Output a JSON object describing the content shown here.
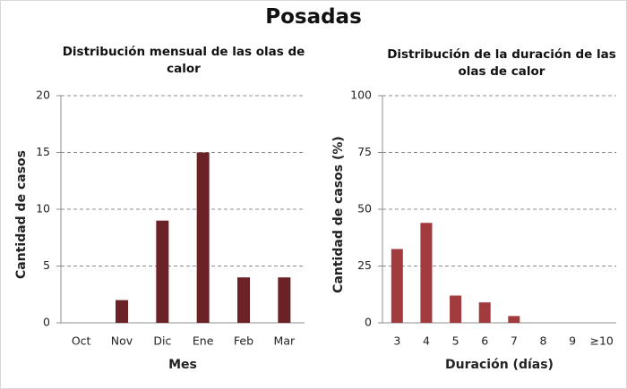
{
  "title": "Posadas",
  "chart_data": [
    {
      "type": "bar",
      "title": "Distribución mensual de las olas de calor",
      "x_label": "Mes",
      "y_label": "Cantidad de casos",
      "categories": [
        "Oct",
        "Nov",
        "Dic",
        "Ene",
        "Feb",
        "Mar"
      ],
      "values": [
        0,
        2,
        9,
        15,
        4,
        4
      ],
      "color": "#6b2226",
      "ylim": [
        0,
        20
      ],
      "yticks": [
        0,
        5,
        10,
        15,
        20
      ],
      "grid": true
    },
    {
      "type": "bar",
      "title": "Distribución de la duración de las olas de calor",
      "x_label": "Duración (días)",
      "y_label": "Cantidad de casos (%)",
      "categories": [
        "3",
        "4",
        "5",
        "6",
        "7",
        "8",
        "9",
        "≥10"
      ],
      "values": [
        32.5,
        44,
        12,
        9,
        3,
        0,
        0,
        0
      ],
      "color": "#a23b3d",
      "ylim": [
        0,
        100
      ],
      "yticks": [
        0,
        25,
        50,
        75,
        100
      ],
      "grid": true
    }
  ]
}
